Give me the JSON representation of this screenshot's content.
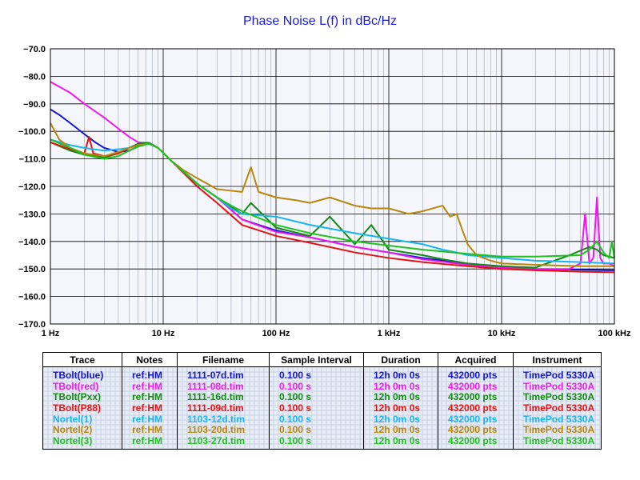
{
  "colors": {
    "background": "#ffffff",
    "plot_background": "#f4f6fb",
    "major_grid": "#000000",
    "minor_grid": "#9aa3b5",
    "title": "#1a1adc"
  },
  "chart_data": {
    "type": "line",
    "title": "Phase Noise L(f) in dBc/Hz",
    "xlabel": "",
    "ylabel": "",
    "x_scale": "log",
    "xlim": [
      1,
      100000
    ],
    "ylim": [
      -170,
      -70
    ],
    "grid": true,
    "x_tick_labels": [
      "1 Hz",
      "10 Hz",
      "100 Hz",
      "1 kHz",
      "10 kHz",
      "100 kHz"
    ],
    "y_tick_labels": [
      "-70.0",
      "-80.0",
      "-90.0",
      "-100.0",
      "-110.0",
      "-120.0",
      "-130.0",
      "-140.0",
      "-150.0",
      "-160.0",
      "-170.0"
    ],
    "series": [
      {
        "name": "TBolt(blue)",
        "color": "#1515d0",
        "x": [
          1,
          1.2,
          1.5,
          2,
          2.5,
          3,
          4,
          5,
          6,
          7.5,
          9,
          12,
          20,
          30,
          50,
          100,
          200,
          500,
          1000,
          2000,
          5000,
          10000,
          20000,
          50000,
          100000
        ],
        "y": [
          -92,
          -94,
          -97,
          -101,
          -104,
          -106,
          -107.5,
          -107,
          -105.5,
          -104.2,
          -106,
          -111,
          -119,
          -124,
          -132,
          -136,
          -138.5,
          -142,
          -144,
          -146,
          -148,
          -149.5,
          -150,
          -150.3,
          -150.5
        ]
      },
      {
        "name": "TBolt(red)",
        "color": "#ee18ee",
        "x": [
          1,
          1.5,
          2,
          3,
          4,
          5,
          6,
          7.5,
          9,
          12,
          20,
          30,
          50,
          100,
          200,
          500,
          1000,
          2000,
          5000,
          10000,
          20000,
          40000,
          50000,
          55000,
          60000,
          65000,
          70000,
          75000,
          80000,
          90000,
          100000
        ],
        "y": [
          -82,
          -86,
          -90,
          -95,
          -99,
          -102,
          -104,
          -104.2,
          -106,
          -111,
          -119,
          -124,
          -132,
          -136.5,
          -138.5,
          -142,
          -144,
          -146.5,
          -148.5,
          -149.5,
          -150,
          -150,
          -148,
          -130,
          -148,
          -146,
          -124,
          -146,
          -148,
          -148,
          -149
        ]
      },
      {
        "name": "TBolt(Pxx)",
        "color": "#128a12",
        "x": [
          1,
          1.5,
          2,
          3,
          4,
          5,
          6,
          7.5,
          9,
          12,
          20,
          30,
          50,
          60,
          100,
          200,
          300,
          500,
          700,
          1000,
          2000,
          3000,
          5000,
          10000,
          20000,
          40000,
          60000,
          70000,
          80000,
          100000
        ],
        "y": [
          -104,
          -107,
          -108.5,
          -109.5,
          -108,
          -106,
          -104.5,
          -104.2,
          -106,
          -111,
          -119,
          -124,
          -130,
          -126,
          -135,
          -138,
          -131,
          -141,
          -134,
          -143,
          -145,
          -146.5,
          -148,
          -149,
          -149.5,
          -145,
          -142,
          -143,
          -145,
          -146
        ]
      },
      {
        "name": "TBolt(P88)",
        "color": "#e01414",
        "x": [
          1,
          1.5,
          2,
          2.2,
          2.4,
          3,
          4,
          5,
          6,
          7.5,
          9,
          12,
          20,
          30,
          50,
          100,
          200,
          500,
          1000,
          2000,
          5000,
          10000,
          20000,
          50000,
          100000
        ],
        "y": [
          -104,
          -106.5,
          -108,
          -102,
          -108,
          -109,
          -108,
          -106,
          -105,
          -104.5,
          -106,
          -111,
          -120,
          -126,
          -134,
          -138,
          -140.5,
          -144,
          -146,
          -147.5,
          -149,
          -150,
          -150.5,
          -151,
          -151.2
        ]
      },
      {
        "name": "Nortel(1)",
        "color": "#18b4f0",
        "x": [
          1,
          1.5,
          2,
          3,
          4,
          5,
          6,
          7.5,
          9,
          12,
          20,
          30,
          40,
          50,
          100,
          200,
          500,
          1000,
          2000,
          3000,
          4000,
          5000,
          10000,
          20000,
          50000,
          100000
        ],
        "y": [
          -103,
          -105,
          -106,
          -107,
          -106.5,
          -106,
          -105,
          -104.5,
          -106,
          -111,
          -119,
          -124,
          -128,
          -130,
          -131,
          -134,
          -137,
          -139,
          -141,
          -143,
          -144,
          -145,
          -146,
          -147,
          -147.5,
          -148
        ]
      },
      {
        "name": "Nortel(2)",
        "color": "#b8860b",
        "x": [
          1,
          1.2,
          1.5,
          2,
          3,
          4,
          5,
          6,
          7.5,
          9,
          12,
          15,
          20,
          30,
          50,
          60,
          70,
          100,
          150,
          200,
          300,
          500,
          700,
          1000,
          1500,
          2000,
          3000,
          3500,
          4000,
          4500,
          5000,
          6000,
          8000,
          10000,
          20000,
          50000,
          100000
        ],
        "y": [
          -97,
          -103,
          -106,
          -108,
          -109,
          -107.5,
          -106,
          -105,
          -104.5,
          -106,
          -111,
          -114,
          -117,
          -121,
          -122,
          -113,
          -122,
          -124,
          -125,
          -126,
          -124,
          -127,
          -128,
          -128,
          -130,
          -129,
          -127,
          -131,
          -130,
          -136,
          -141,
          -145,
          -147,
          -148,
          -148.5,
          -149,
          -149
        ]
      },
      {
        "name": "Nortel(3)",
        "color": "#20c020",
        "x": [
          1,
          1.5,
          2,
          3,
          4,
          5,
          6,
          7.5,
          9,
          12,
          20,
          30,
          40,
          50,
          100,
          200,
          500,
          1000,
          2000,
          5000,
          10000,
          20000,
          50000,
          60000,
          70000,
          80000,
          90000,
          95000,
          100000
        ],
        "y": [
          -103,
          -106,
          -108.5,
          -110,
          -109,
          -107,
          -105.5,
          -104.5,
          -106,
          -111,
          -119,
          -124,
          -127,
          -129,
          -134,
          -137,
          -140,
          -141.5,
          -143,
          -144.5,
          -145.5,
          -145.5,
          -145,
          -143,
          -140,
          -144,
          -146,
          -140,
          -146
        ]
      }
    ]
  },
  "legend_table": {
    "headers": [
      "Trace",
      "Notes",
      "Filename",
      "Sample Interval",
      "Duration",
      "Acquired",
      "Instrument"
    ],
    "rows": [
      {
        "color": "#1515d0",
        "cells": [
          "TBolt(blue)",
          "ref:HM",
          "1111-07d.tim",
          "0.100 s",
          "12h 0m 0s",
          "432000 pts",
          "TimePod 5330A"
        ]
      },
      {
        "color": "#ee18ee",
        "cells": [
          "TBolt(red)",
          "ref:HM",
          "1111-08d.tim",
          "0.100 s",
          "12h 0m 0s",
          "432000 pts",
          "TimePod 5330A"
        ]
      },
      {
        "color": "#128a12",
        "cells": [
          "TBolt(Pxx)",
          "ref:HM",
          "1111-16d.tim",
          "0.100 s",
          "12h 0m 0s",
          "432000 pts",
          "TimePod 5330A"
        ]
      },
      {
        "color": "#e01414",
        "cells": [
          "TBolt(P88)",
          "ref:HM",
          "1111-09d.tim",
          "0.100 s",
          "12h 0m 0s",
          "432000 pts",
          "TimePod 5330A"
        ]
      },
      {
        "color": "#18b4f0",
        "cells": [
          "Nortel(1)",
          "ref:HM",
          "1103-12d.tim",
          "0.100 s",
          "12h 0m 0s",
          "432000 pts",
          "TimePod 5330A"
        ]
      },
      {
        "color": "#b8860b",
        "cells": [
          "Nortel(2)",
          "ref:HM",
          "1103-20d.tim",
          "0.100 s",
          "12h 0m 0s",
          "432000 pts",
          "TimePod 5330A"
        ]
      },
      {
        "color": "#20c020",
        "cells": [
          "Nortel(3)",
          "ref:HM",
          "1103-27d.tim",
          "0.100 s",
          "12h 0m 0s",
          "432000 pts",
          "TimePod 5330A"
        ]
      }
    ]
  }
}
